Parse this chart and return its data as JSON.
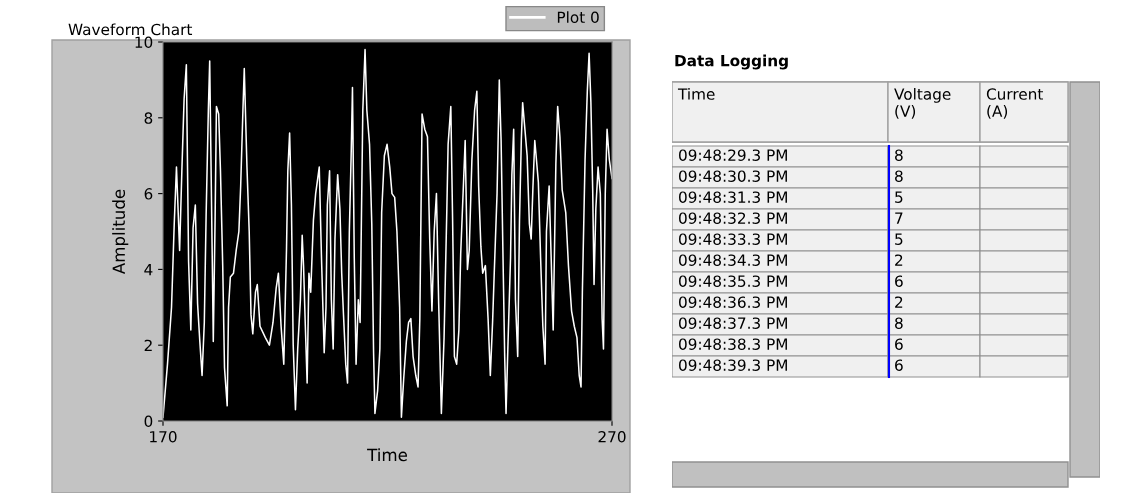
{
  "chart_data": [
    {
      "type": "line",
      "title": "Waveform Chart",
      "xlabel": "Time",
      "ylabel": "Amplitude",
      "xlim": [
        170,
        270
      ],
      "ylim": [
        0,
        10
      ],
      "xticks": [
        170,
        270
      ],
      "yticks": [
        0,
        2,
        4,
        6,
        8,
        10
      ],
      "grid": false,
      "legend": "top right",
      "marker": "none",
      "line_style": "solid",
      "series": [
        {
          "name": "Plot 0",
          "color": "#ffffff",
          "x": [
            170,
            171,
            171.9,
            172.5,
            173,
            173.7,
            174.2,
            174.7,
            175.2,
            175.7,
            176.2,
            176.7,
            177.2,
            177.7,
            178.2,
            178.7,
            179.2,
            179.6,
            180.1,
            180.4,
            181,
            181.2,
            181.6,
            181.9,
            182.4,
            182.8,
            183.3,
            183.7,
            184.3,
            184.6,
            185,
            185.7,
            186.3,
            186.9,
            187.3,
            187.8,
            188.1,
            188.7,
            189.2,
            189.6,
            190,
            190.6,
            191,
            191.6,
            192.8,
            193.7,
            194.5,
            195.2,
            195.7,
            196.3,
            196.9,
            197.5,
            197.8,
            198.2,
            198.6,
            199,
            199.5,
            200,
            200.6,
            201,
            201.3,
            201.7,
            202.1,
            202.5,
            202.9,
            203.5,
            204,
            204.8,
            205.3,
            205.9,
            206.3,
            206.6,
            207.1,
            207.5,
            207.9,
            208.3,
            208.9,
            209.4,
            209.8,
            210.2,
            210.7,
            211.1,
            211.5,
            211.9,
            212.2,
            212.6,
            213,
            213.5,
            213.9,
            214.5,
            215,
            215.4,
            216,
            216.5,
            216.9,
            217.2,
            217.8,
            218.3,
            218.7,
            219.3,
            219.9,
            220.5,
            221,
            221.6,
            222.1,
            222.7,
            223.1,
            223.6,
            224.2,
            224.7,
            225.2,
            225.7,
            226.3,
            226.8,
            227.2,
            227.7,
            228.3,
            228.9,
            229.4,
            229.9,
            230.4,
            230.9,
            231.4,
            232,
            232.6,
            233.2,
            233.5,
            234.1,
            234.5,
            234.9,
            235.4,
            235.9,
            236.3,
            237.3,
            237.8,
            238.2,
            238.8,
            239.4,
            239.9,
            240.3,
            240.8,
            241.2,
            241.8,
            242.4,
            242.9,
            243.4,
            243.8,
            244.4,
            244.9,
            245.3,
            245.7,
            246.1,
            246.4,
            246.8,
            247.4,
            247.7,
            248.1,
            248.5,
            249,
            249.4,
            249.8,
            250.1,
            250.6,
            251.1,
            251.6,
            252,
            252.4,
            252.8,
            253.1,
            253.6,
            254.1,
            254.6,
            255.1,
            255.4,
            256,
            256.5,
            256.9,
            257.5,
            257.9,
            258.4,
            258.9,
            259.7,
            260.3,
            261,
            261.6,
            262.2,
            262.7,
            263.1,
            263.4,
            264,
            264.5,
            264.9,
            265.3,
            265.7,
            266,
            266.4,
            266.9,
            267.4,
            267.8,
            268.1,
            268.5,
            268.9,
            269.4,
            270
          ],
          "values": [
            0.1,
            1.5,
            3.0,
            5.2,
            6.7,
            4.5,
            6.6,
            8.5,
            9.4,
            4.2,
            2.4,
            5.1,
            5.7,
            3.1,
            2.1,
            1.2,
            2.6,
            5.4,
            8.2,
            9.5,
            4.0,
            2.1,
            5.3,
            8.3,
            8.1,
            6.6,
            4.1,
            1.4,
            0.4,
            3.0,
            3.8,
            3.9,
            4.5,
            5.0,
            6.2,
            8.2,
            9.3,
            6.7,
            5.0,
            2.8,
            2.3,
            3.4,
            3.6,
            2.5,
            2.2,
            2.0,
            2.6,
            3.5,
            3.9,
            2.5,
            1.5,
            4.5,
            6.6,
            7.6,
            5.7,
            2.0,
            0.3,
            1.9,
            3.2,
            4.9,
            4.1,
            2.5,
            1.0,
            3.9,
            3.4,
            5.3,
            6.0,
            6.7,
            4.3,
            1.8,
            3.0,
            5.7,
            6.6,
            3.2,
            1.9,
            4.8,
            6.5,
            5.6,
            3.9,
            2.8,
            1.5,
            1.0,
            5.0,
            7.0,
            8.8,
            4.3,
            1.5,
            3.2,
            2.6,
            8.2,
            9.8,
            8.2,
            7.3,
            5.2,
            1.8,
            0.2,
            0.8,
            1.9,
            5.5,
            7.0,
            7.3,
            6.7,
            6.0,
            5.9,
            5.0,
            3.0,
            0.1,
            1.1,
            2.1,
            2.6,
            2.7,
            1.7,
            1.2,
            0.9,
            2.7,
            8.1,
            7.7,
            7.5,
            4.8,
            2.9,
            5.0,
            6.0,
            3.1,
            0.2,
            2.2,
            5.5,
            7.3,
            8.3,
            5.3,
            1.7,
            1.5,
            2.4,
            4.4,
            7.4,
            4.0,
            4.5,
            6.9,
            8.2,
            8.7,
            6.2,
            4.6,
            3.9,
            4.1,
            2.7,
            1.2,
            2.6,
            4.0,
            6.0,
            9.0,
            7.4,
            4.5,
            1.7,
            0.2,
            1.9,
            4.3,
            6.5,
            7.7,
            3.2,
            1.7,
            5.3,
            7.4,
            8.4,
            7.7,
            7.0,
            5.2,
            4.8,
            6.2,
            7.4,
            7.0,
            6.3,
            4.3,
            2.5,
            1.5,
            5.0,
            6.2,
            4.1,
            2.4,
            6.8,
            8.3,
            7.5,
            6.1,
            5.5,
            4.1,
            2.9,
            2.5,
            2.2,
            1.2,
            0.9,
            3.4,
            6.9,
            8.7,
            9.7,
            8.4,
            6.1,
            3.6,
            5.6,
            6.7,
            6.0,
            2.7,
            1.9,
            6.0,
            7.7,
            6.9,
            6.4
          ]
        }
      ]
    },
    {
      "type": "other",
      "title": "Data Logging",
      "categories": [
        "Time",
        "Voltage (V)",
        "Current (A)"
      ],
      "cells": [
        [
          "09:48:29.3 PM",
          "8",
          null
        ],
        [
          "09:48:30.3 PM",
          "8",
          null
        ],
        [
          "09:48:31.3 PM",
          "5",
          null
        ],
        [
          "09:48:32.3 PM",
          "7",
          null
        ],
        [
          "09:48:33.3 PM",
          "5",
          null
        ],
        [
          "09:48:34.3 PM",
          "2",
          null
        ],
        [
          "09:48:35.3 PM",
          "6",
          null
        ],
        [
          "09:48:36.3 PM",
          "2",
          null
        ],
        [
          "09:48:37.3 PM",
          "8",
          null
        ],
        [
          "09:48:38.3 PM",
          "6",
          null
        ],
        [
          "09:48:39.3 PM",
          "6",
          null
        ]
      ]
    }
  ]
}
